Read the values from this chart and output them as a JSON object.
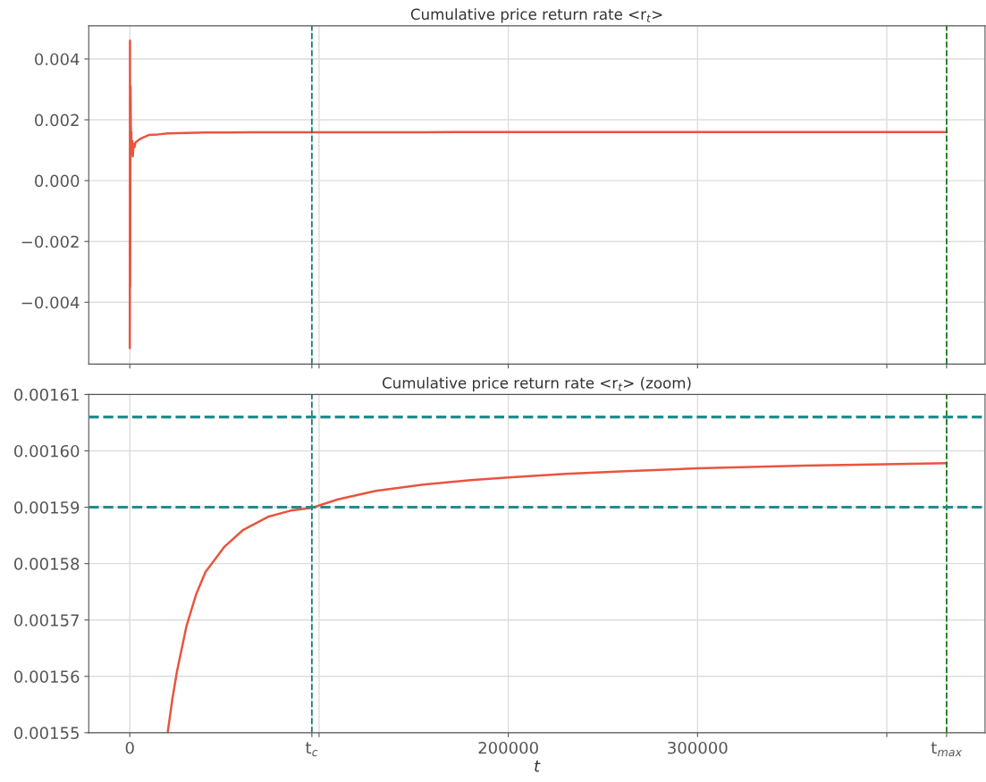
{
  "chart_data": [
    {
      "type": "line",
      "title": "Cumulative price return rate <r$_{t}$>",
      "tick_labels": "y",
      "grid": true,
      "line_style": "solid",
      "marker": "none",
      "xlim": [
        -21700,
        451900
      ],
      "ylim": [
        -0.00603,
        0.00509
      ],
      "xticks": [
        0,
        {
          "value": 96200,
          "label": null
        },
        {
          "value": 100000,
          "label": null
        },
        {
          "value": 200000,
          "label": null
        },
        {
          "value": 300000,
          "label": null
        },
        {
          "value": 400000,
          "label": null
        },
        {
          "value": 431600,
          "label": null
        }
      ],
      "yticks": [
        {
          "value": -0.004,
          "label": "−0.004"
        },
        {
          "value": -0.002,
          "label": "−0.002"
        },
        {
          "value": 0.0,
          "label": "0.000"
        },
        {
          "value": 0.002,
          "label": "0.002"
        },
        {
          "value": 0.004,
          "label": "0.004"
        }
      ],
      "ref_lines": [
        {
          "axis": "x",
          "value": 96200,
          "color": "#1f7f73",
          "line_style": "dashed"
        },
        {
          "axis": "x",
          "value": 431600,
          "color": "#1e7a1e",
          "line_style": "dashed"
        }
      ],
      "series": [
        {
          "color": "#e8553f",
          "x": [
            0,
            100,
            200,
            400,
            600,
            800,
            1000,
            1300,
            1600,
            2000,
            2500,
            3000,
            4000,
            5000,
            7000,
            10000,
            15000,
            20000,
            25000,
            30000,
            40000,
            50000,
            63700,
            73100,
            96200,
            120000,
            153000,
            200000,
            262000,
            300000,
            356000,
            431600
          ],
          "values": [
            -0.0055,
            0.0046,
            -0.0035,
            0.0031,
            0.0012,
            0.0016,
            0.0009,
            0.0013,
            0.0008,
            0.0012,
            0.0011,
            0.00125,
            0.0013,
            0.00135,
            0.00142,
            0.0015,
            0.00152,
            0.00155,
            0.00156,
            0.00157,
            0.00158,
            0.00158,
            0.00159,
            0.00159,
            0.00159,
            0.00159,
            0.00159,
            0.0016,
            0.0016,
            0.0016,
            0.0016,
            0.0016
          ]
        }
      ]
    },
    {
      "type": "line",
      "title": "Cumulative price return rate <r$_{t}$> (zoom)",
      "xlabel": "t",
      "grid": true,
      "line_style": "solid",
      "marker": "none",
      "xlim": [
        -21700,
        451900
      ],
      "ylim": [
        0.00155,
        0.00161
      ],
      "xticks": [
        0,
        {
          "value": 96200,
          "label": "t$_{c}$"
        },
        {
          "value": 100000,
          "label": null
        },
        200000,
        300000,
        {
          "value": 400000,
          "label": null
        },
        {
          "value": 431600,
          "label": "t$_{max}$"
        }
      ],
      "yticks": [
        {
          "value": 0.00155,
          "label": "0.00155"
        },
        {
          "value": 0.00156,
          "label": "0.00156"
        },
        {
          "value": 0.00157,
          "label": "0.00157"
        },
        {
          "value": 0.00158,
          "label": "0.00158"
        },
        {
          "value": 0.00159,
          "label": "0.00159"
        },
        {
          "value": 0.0016,
          "label": "0.00160"
        },
        {
          "value": 0.00161,
          "label": "0.00161"
        }
      ],
      "ref_lines": [
        {
          "axis": "x",
          "value": 96200,
          "color": "#1f7f73",
          "line_style": "dashed"
        },
        {
          "axis": "x",
          "value": 431600,
          "color": "#1e7a1e",
          "line_style": "dashed"
        },
        {
          "axis": "y",
          "value": 0.001606,
          "color": "#238c8c",
          "line_style": "dashed"
        },
        {
          "axis": "y",
          "value": 0.00159,
          "color": "#238c8c",
          "line_style": "dashed"
        }
      ],
      "series": [
        {
          "color": "#e8553f",
          "x": [
            20000,
            22500,
            25000,
            30000,
            35000,
            40000,
            50000,
            60000,
            73000,
            85000,
            96200,
            110000,
            130000,
            155000,
            180000,
            200000,
            230000,
            262000,
            300000,
            356000,
            431600
          ],
          "values": [
            0.00155,
            0.001556,
            0.001561,
            0.001569,
            0.0015745,
            0.0015785,
            0.001583,
            0.001586,
            0.0015883,
            0.0015894,
            0.0015899,
            0.0015914,
            0.0015929,
            0.001594,
            0.0015948,
            0.0015953,
            0.0015959,
            0.0015964,
            0.0015969,
            0.0015974,
            0.0015978
          ]
        }
      ]
    }
  ]
}
